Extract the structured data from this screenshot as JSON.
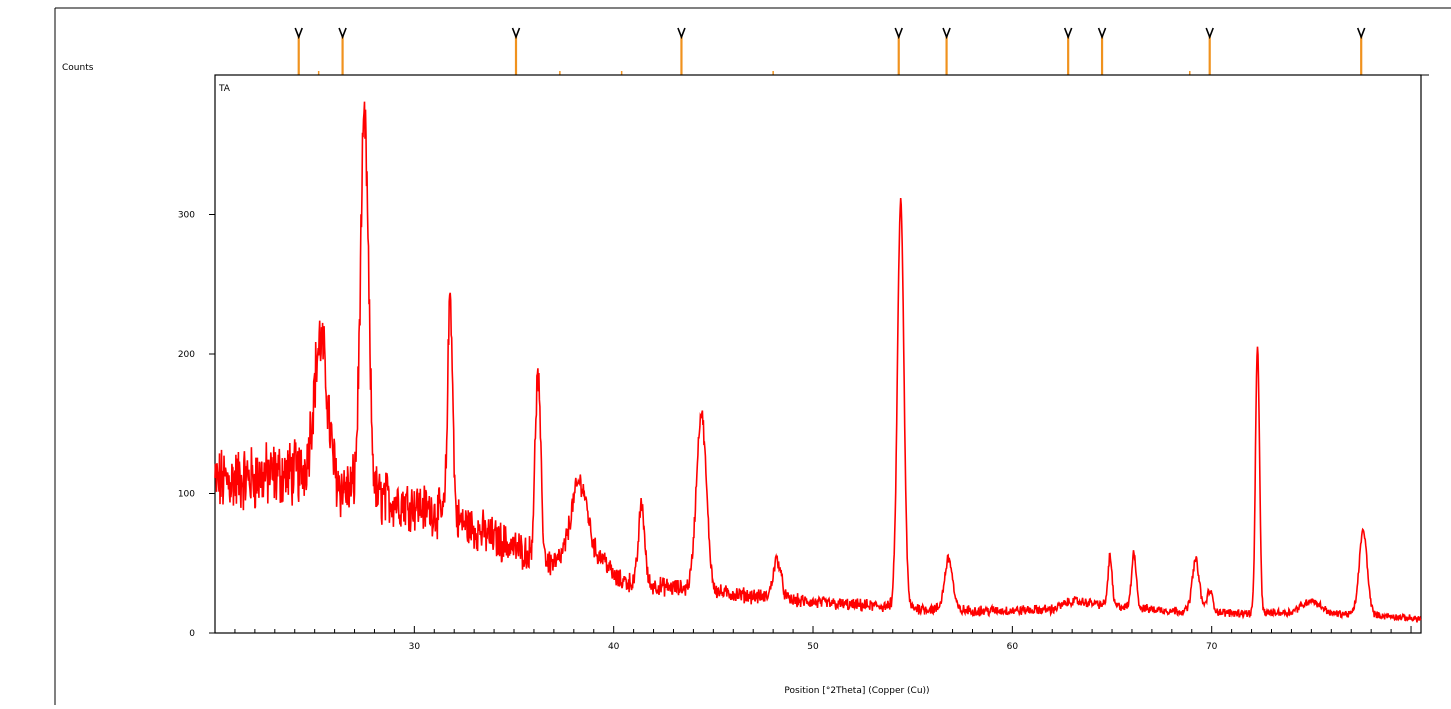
{
  "chart_data": {
    "type": "line",
    "ylabel": "Counts",
    "xlabel": "Position [°2Theta] (Copper (Cu))",
    "sample_label": "TA",
    "xlim": [
      20,
      80.5
    ],
    "ylim": [
      0,
      400
    ],
    "x_ticks": [
      30,
      40,
      50,
      60,
      70
    ],
    "y_ticks": [
      0,
      100,
      200,
      300
    ],
    "grid": false,
    "line_color": "#ff0000",
    "reference_color": "#f0921e",
    "reference_peaks_x": [
      24.2,
      26.4,
      35.1,
      43.4,
      54.3,
      56.7,
      62.8,
      64.5,
      69.9,
      77.5
    ],
    "series": [
      {
        "baseline": [
          [
            20,
            108
          ],
          [
            24,
            115
          ],
          [
            26,
            105
          ],
          [
            28,
            98
          ],
          [
            30,
            92
          ],
          [
            32,
            82
          ],
          [
            34,
            68
          ],
          [
            36,
            55
          ],
          [
            38,
            44
          ],
          [
            40,
            38
          ],
          [
            42,
            34
          ],
          [
            44,
            31
          ],
          [
            46,
            28
          ],
          [
            48,
            25
          ],
          [
            50,
            22
          ],
          [
            52,
            20
          ],
          [
            54,
            19
          ],
          [
            56,
            17
          ],
          [
            58,
            16
          ],
          [
            60,
            16
          ],
          [
            62,
            17
          ],
          [
            63,
            23
          ],
          [
            66,
            18
          ],
          [
            68,
            16
          ],
          [
            70,
            15
          ],
          [
            72,
            14
          ],
          [
            74,
            15
          ],
          [
            75,
            24
          ],
          [
            76,
            14
          ],
          [
            78,
            13
          ],
          [
            80.5,
            10
          ]
        ],
        "noise": [
          [
            20,
            40
          ],
          [
            26,
            40
          ],
          [
            30,
            30
          ],
          [
            34,
            25
          ],
          [
            38,
            14
          ],
          [
            44,
            10
          ],
          [
            50,
            8
          ],
          [
            60,
            6
          ],
          [
            70,
            5
          ],
          [
            80.5,
            4
          ]
        ],
        "peaks": [
          {
            "x": 25.3,
            "height": 100,
            "width": 0.35
          },
          {
            "x": 27.5,
            "height": 265,
            "width": 0.2
          },
          {
            "x": 31.8,
            "height": 160,
            "width": 0.12
          },
          {
            "x": 36.2,
            "height": 130,
            "width": 0.14
          },
          {
            "x": 38.3,
            "height": 65,
            "width": 0.45
          },
          {
            "x": 39.5,
            "height": 12,
            "width": 0.3
          },
          {
            "x": 41.4,
            "height": 57,
            "width": 0.15
          },
          {
            "x": 44.4,
            "height": 127,
            "width": 0.25
          },
          {
            "x": 48.2,
            "height": 28,
            "width": 0.2
          },
          {
            "x": 54.4,
            "height": 290,
            "width": 0.16
          },
          {
            "x": 56.8,
            "height": 37,
            "width": 0.2
          },
          {
            "x": 64.9,
            "height": 35,
            "width": 0.1
          },
          {
            "x": 66.1,
            "height": 40,
            "width": 0.12
          },
          {
            "x": 69.2,
            "height": 37,
            "width": 0.18
          },
          {
            "x": 69.9,
            "height": 15,
            "width": 0.15
          },
          {
            "x": 72.3,
            "height": 192,
            "width": 0.1
          },
          {
            "x": 77.6,
            "height": 60,
            "width": 0.2
          }
        ]
      }
    ]
  }
}
